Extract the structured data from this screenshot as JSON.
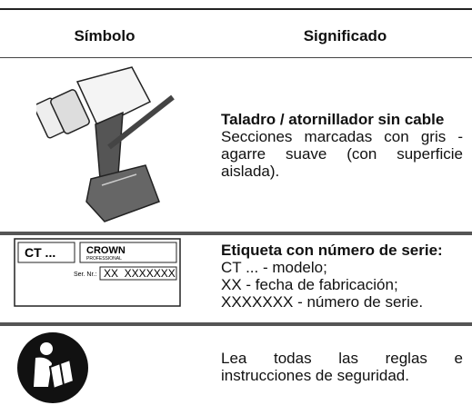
{
  "header": {
    "symbol": "Símbolo",
    "meaning": "Significado"
  },
  "rows": [
    {
      "title": "Taladro / atornillador sin cable",
      "lines": [
        "Secciones marcadas con gris - agarre suave (con superficie aislada)."
      ]
    },
    {
      "title": "Etiqueta con número de serie:",
      "lines": [
        "CT ... - modelo;",
        "XX - fecha de fabricación;",
        "XXXXXXX - número de serie."
      ],
      "label": {
        "model": "CT ...",
        "brand": "CROWN",
        "brand_sub": "PROFESSIONAL",
        "serial_caption": "Ser. Nr.:",
        "serial": "XX  XXXXXXX"
      }
    },
    {
      "title": null,
      "lines": [
        "Lea todas las reglas e instrucciones de seguridad."
      ]
    }
  ]
}
